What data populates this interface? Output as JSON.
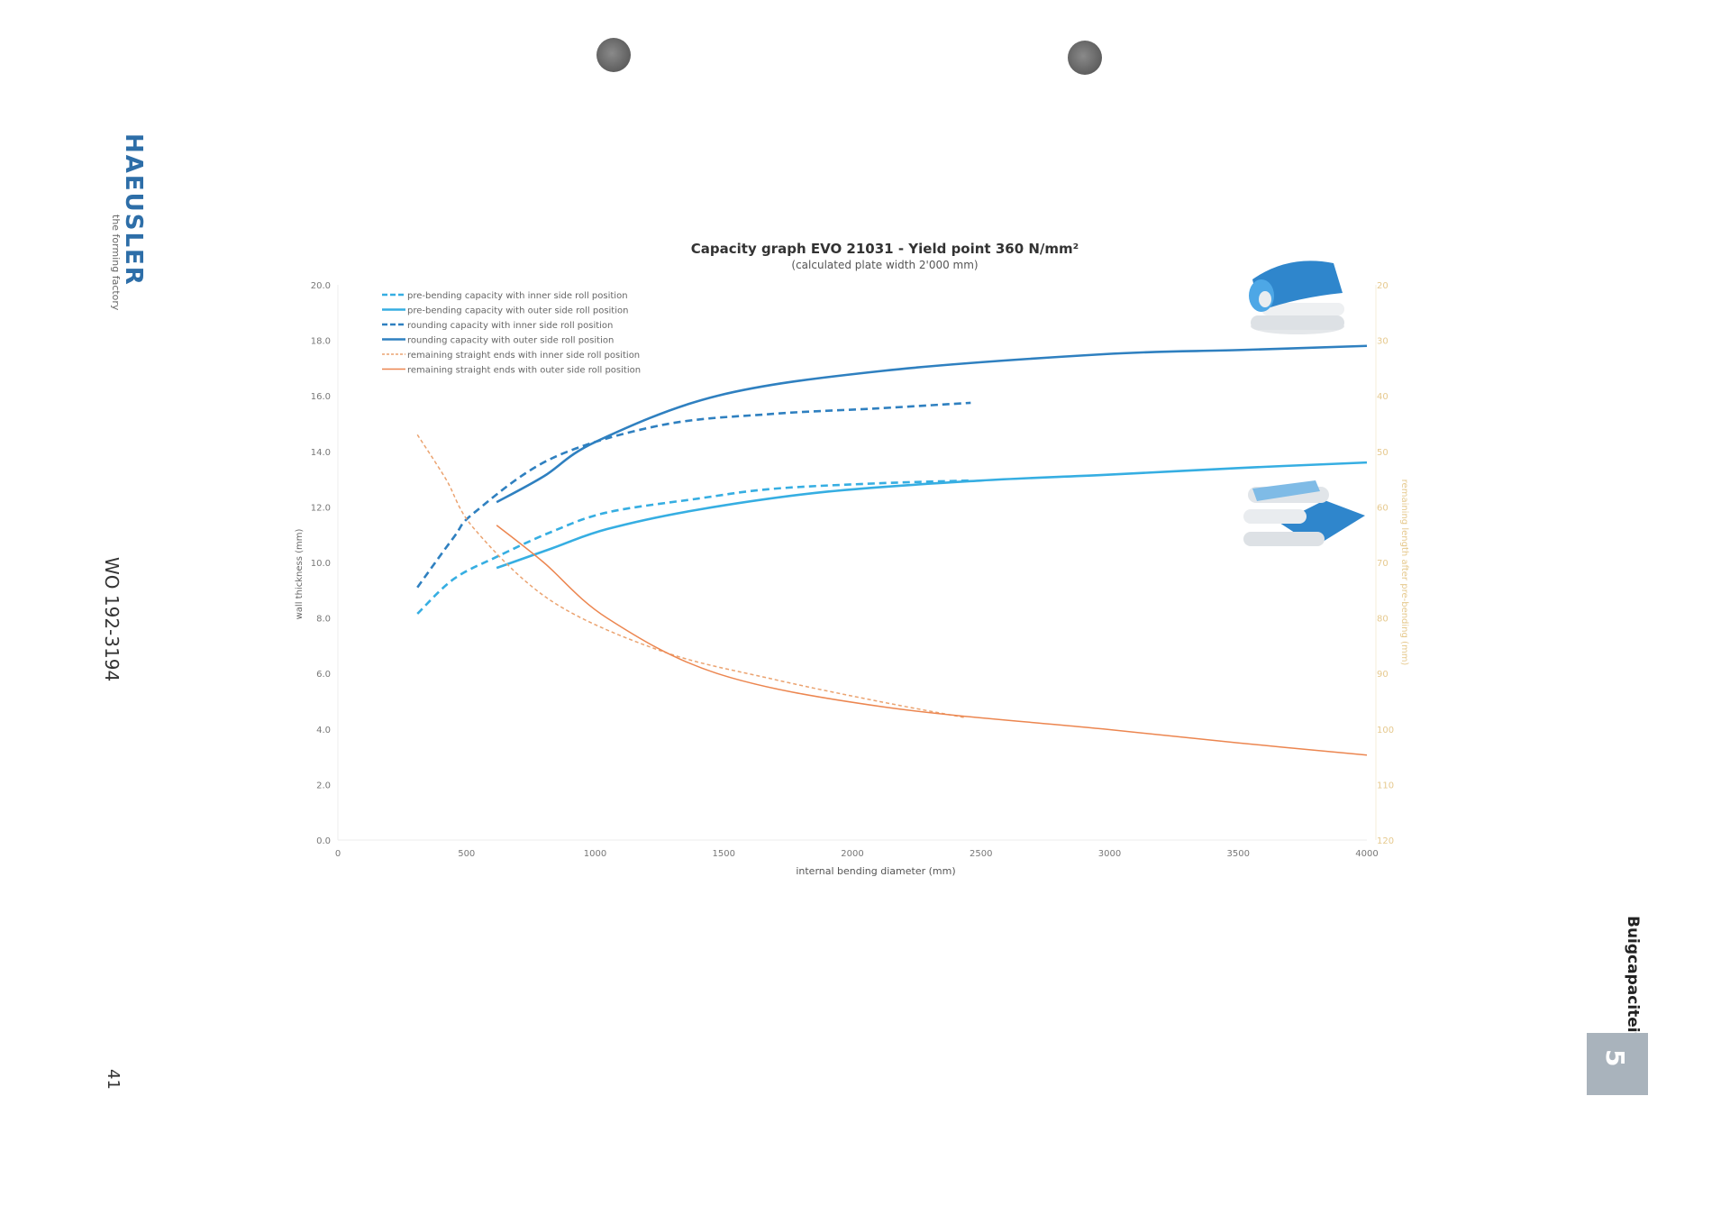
{
  "page": {
    "brand": "HAEUSLER",
    "brand_tagline": "the forming factory",
    "document_number": "WO 192-3194",
    "page_number": "41",
    "section_title": "Buigcapaciteit",
    "section_number": "5"
  },
  "colors": {
    "dark_blue": "#2f80c0",
    "light_blue": "#36aee2",
    "orange_solid": "#ec8650",
    "orange_dashed": "#eba370",
    "right_axis": "#e6c98e",
    "brand": "#2d6ea8"
  },
  "chart_data": {
    "type": "line",
    "title": "Capacity graph EVO 21031 - Yield point 360 N/mm²",
    "subtitle": "(calculated plate width 2'000 mm)",
    "xlabel": "internal bending diameter (mm)",
    "ylabel": "wall thickness (mm)",
    "y2label": "remaining length after pre-bending (mm)",
    "xlim": [
      0,
      4000
    ],
    "ylim": [
      0,
      20
    ],
    "y2lim": [
      20,
      120
    ],
    "y2_inverted": true,
    "xticks": [
      "0",
      "500",
      "1000",
      "1500",
      "2000",
      "2500",
      "3000",
      "3500",
      "4000"
    ],
    "yticks": [
      "0.0",
      "2.0",
      "4.0",
      "6.0",
      "8.0",
      "10.0",
      "12.0",
      "14.0",
      "16.0",
      "18.0",
      "20.0"
    ],
    "y2ticks": [
      "20",
      "30",
      "40",
      "50",
      "60",
      "70",
      "80",
      "90",
      "100",
      "110",
      "120"
    ],
    "legend_position": "top-left",
    "grid": false,
    "series": [
      {
        "name": "pre-bending capacity with inner side roll position",
        "axis": "left",
        "style": "dashed",
        "color": "#36aee2",
        "x": [
          309,
          450,
          617,
          830,
          1046,
          1400,
          1689,
          2100,
          2460
        ],
        "y": [
          8.15,
          9.4,
          10.2,
          11.1,
          11.8,
          12.3,
          12.65,
          12.85,
          12.95
        ]
      },
      {
        "name": "pre-bending capacity with outer side roll position",
        "axis": "left",
        "style": "solid",
        "color": "#36aee2",
        "x": [
          617,
          830,
          1046,
          1400,
          1903,
          2500,
          2975,
          3500,
          4000
        ],
        "y": [
          9.8,
          10.5,
          11.2,
          11.9,
          12.55,
          12.95,
          13.15,
          13.4,
          13.6
        ]
      },
      {
        "name": "rounding capacity with inner side roll position",
        "axis": "left",
        "style": "dashed",
        "color": "#2f80c0",
        "x": [
          309,
          450,
          531,
          832,
          1260,
          1689,
          2100,
          2460
        ],
        "y": [
          9.1,
          10.9,
          11.8,
          13.75,
          14.95,
          15.35,
          15.55,
          15.75
        ]
      },
      {
        "name": "rounding capacity with outer side roll position",
        "axis": "left",
        "style": "solid",
        "color": "#2f80c0",
        "x": [
          617,
          800,
          1003,
          1474,
          2117,
          2975,
          3500,
          4000
        ],
        "y": [
          12.17,
          13.1,
          14.35,
          16.0,
          16.9,
          17.5,
          17.65,
          17.8
        ]
      },
      {
        "name": "remaining straight ends with inner side roll position",
        "axis": "right",
        "style": "dashed",
        "color": "#eba370",
        "x": [
          309,
          420,
          531,
          832,
          1260,
          1689,
          2100,
          2443
        ],
        "y": [
          47,
          55,
          64,
          77,
          86,
          91,
          95,
          98
        ]
      },
      {
        "name": "remaining straight ends with outer side roll position",
        "axis": "right",
        "style": "solid",
        "color": "#ec8650",
        "x": [
          617,
          800,
          1046,
          1474,
          2117,
          2975,
          3500,
          4000
        ],
        "y": [
          63.3,
          70,
          80,
          90,
          96,
          100,
          102.5,
          104.7
        ]
      }
    ]
  }
}
